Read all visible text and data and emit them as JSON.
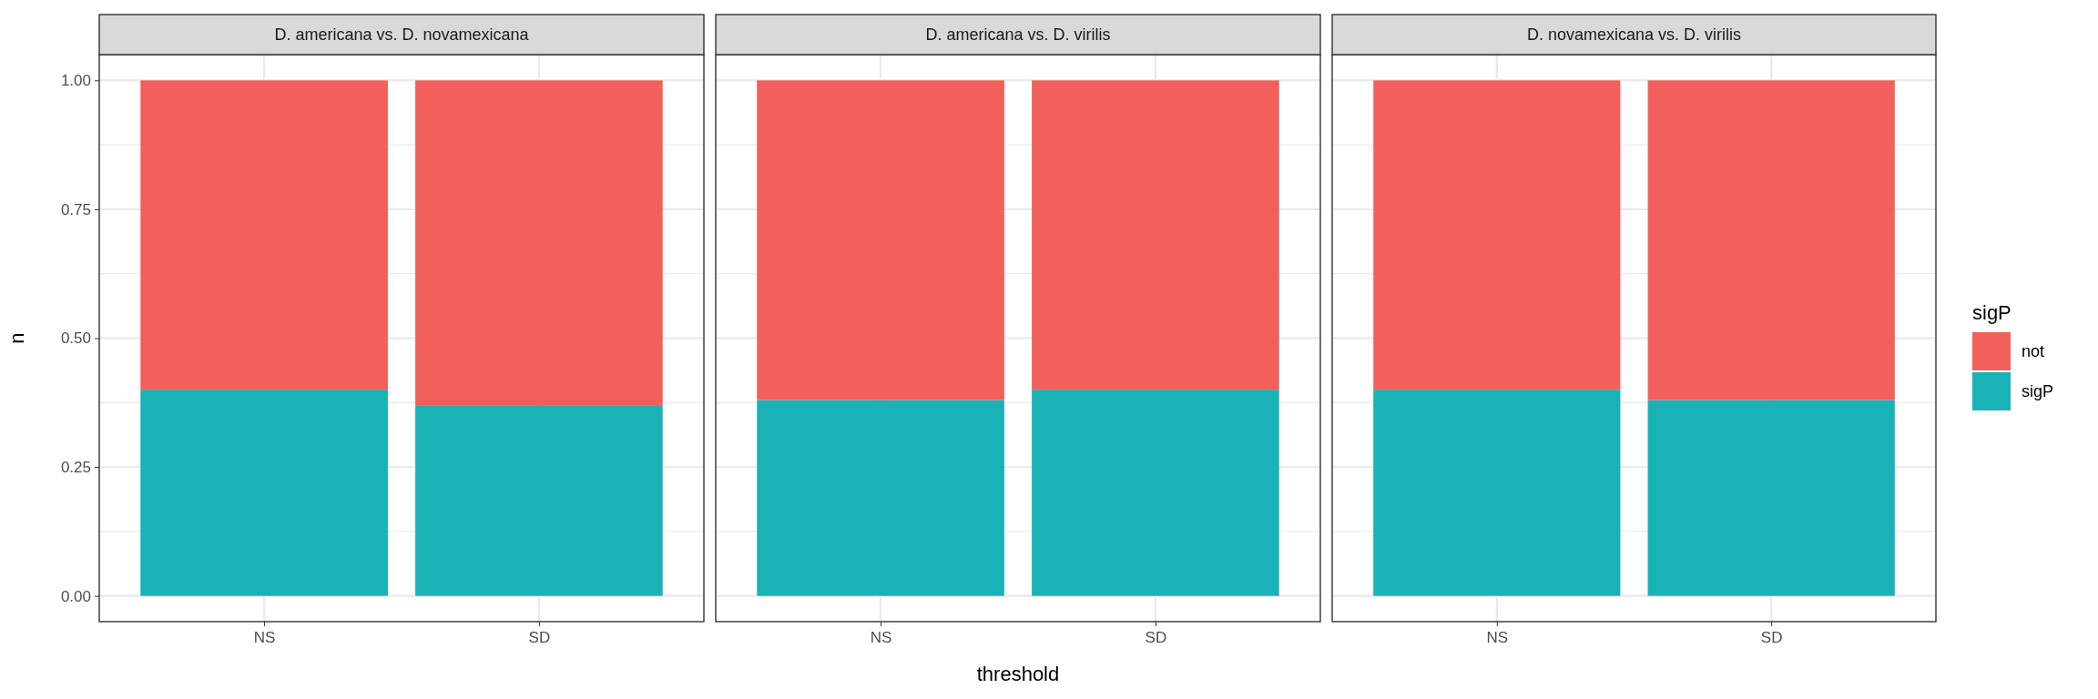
{
  "chart_data": [
    {
      "type": "bar",
      "title": "D. americana vs. D. novamexicana",
      "ylabel": "n",
      "categories": [
        "NS",
        "SD"
      ],
      "stacked": true,
      "ylim": [
        -0.05,
        1.05
      ],
      "yticks": [
        {
          "value": 0,
          "label": "0.00"
        },
        {
          "value": 0.25,
          "label": "0.25"
        },
        {
          "value": 0.5,
          "label": "0.50"
        },
        {
          "value": 0.75,
          "label": "0.75"
        },
        {
          "value": 1,
          "label": "1.00"
        }
      ],
      "grid": true,
      "series": [
        {
          "color": "#19b2b7",
          "values": [
            0.4,
            0.37
          ]
        },
        {
          "color": "#f3605c",
          "values": [
            0.6,
            0.63
          ]
        }
      ]
    },
    {
      "type": "bar",
      "title": "D. americana vs. D. virilis",
      "xlabel": "threshold",
      "categories": [
        "NS",
        "SD"
      ],
      "stacked": true,
      "ylim": [
        -0.05,
        1.05
      ],
      "yticks": [
        0,
        0.25,
        0.5,
        0.75,
        1
      ],
      "grid": true,
      "tick_labels": "x",
      "series": [
        {
          "color": "#19b2b7",
          "values": [
            0.38,
            0.4
          ]
        },
        {
          "color": "#f3605c",
          "values": [
            0.62,
            0.6
          ]
        }
      ]
    },
    {
      "type": "bar",
      "title": "D. novamexicana vs. D. virilis",
      "legend_title": "sigP",
      "legend": "right",
      "categories": [
        "NS",
        "SD"
      ],
      "stacked": true,
      "ylim": [
        -0.05,
        1.05
      ],
      "yticks": [
        0,
        0.25,
        0.5,
        0.75,
        1
      ],
      "grid": true,
      "tick_labels": "x",
      "series": [
        {
          "name": "sigP",
          "color": "#19b2b7",
          "values": [
            0.4,
            0.38
          ]
        },
        {
          "name": "not",
          "color": "#f3605c",
          "values": [
            0.6,
            0.62
          ]
        }
      ]
    }
  ]
}
